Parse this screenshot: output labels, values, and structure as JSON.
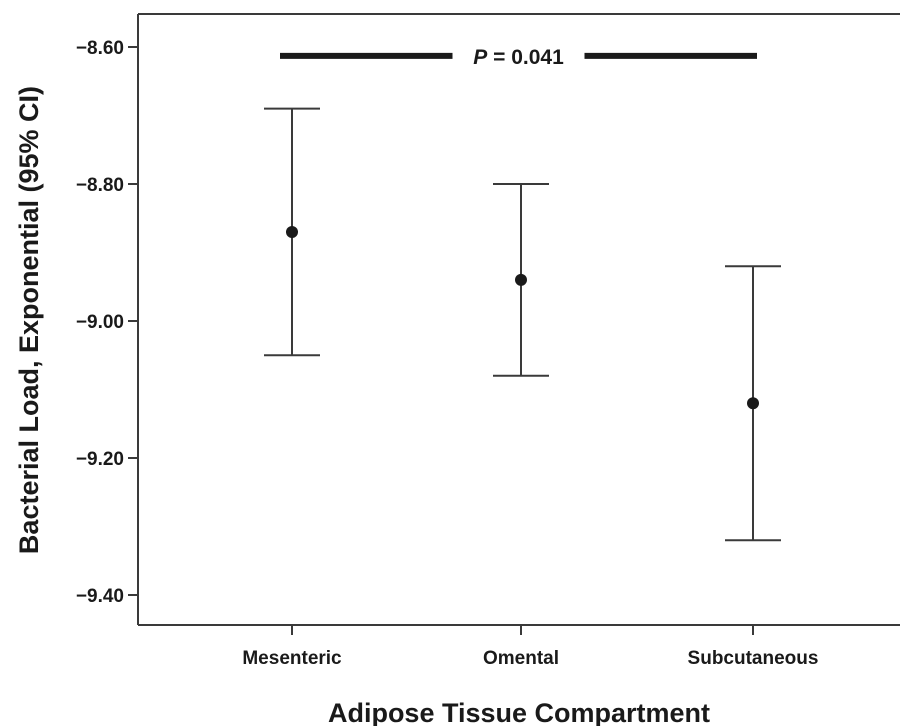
{
  "chart_data": {
    "type": "errorbar",
    "xlabel": "Adipose Tissue Compartment",
    "ylabel": "Bacterial Load, Exponential (95% CI)",
    "ylim": [
      -9.45,
      -8.55
    ],
    "yticks": [
      -8.6,
      -8.8,
      -9.0,
      -9.2,
      -9.4
    ],
    "ytick_labels": [
      "−8.60",
      "−8.80",
      "−9.00",
      "−9.20",
      "−9.40"
    ],
    "categories": [
      "Mesenteric",
      "Omental",
      "Subcutaneous"
    ],
    "points": [
      {
        "category": "Mesenteric",
        "mean": -8.87,
        "ci_low": -9.05,
        "ci_high": -8.69
      },
      {
        "category": "Omental",
        "mean": -8.94,
        "ci_low": -9.08,
        "ci_high": -8.8
      },
      {
        "category": "Subcutaneous",
        "mean": -9.12,
        "ci_low": -9.32,
        "ci_high": -8.92
      }
    ],
    "grid": false,
    "annotation": {
      "from": "Mesenteric",
      "to": "Subcutaneous",
      "level": -8.613,
      "label_italic": "P",
      "label_rest": " = 0.041"
    }
  }
}
